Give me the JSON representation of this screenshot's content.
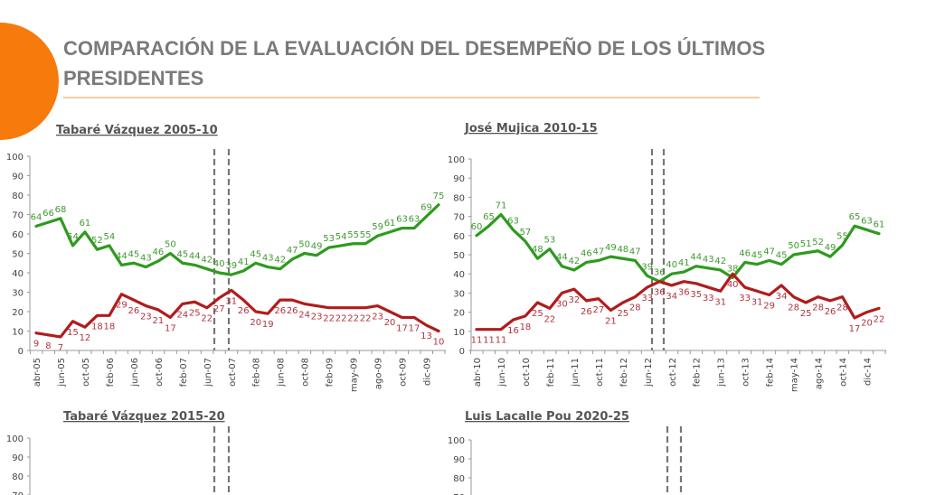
{
  "slide": {
    "title_line1": "COMPARACIÓN DE LA EVALUACIÓN DEL DESEMPEÑO DE LOS ÚLTIMOS",
    "title_line2": "PRESIDENTES",
    "accent_color": "#f77a0c"
  },
  "chart_data": [
    {
      "type": "line",
      "title": "Tabaré Vázquez 2005-10",
      "ylim": [
        0,
        100
      ],
      "yticks": [
        0,
        10,
        20,
        30,
        40,
        50,
        60,
        70,
        80,
        90,
        100
      ],
      "xtick_labels": [
        "abr-05",
        "jun-05",
        "oct-05",
        "feb-06",
        "jun-06",
        "oct-06",
        "feb-07",
        "jun-07",
        "oct-07",
        "feb-08",
        "jun-08",
        "oct-08",
        "feb-09",
        "may-09",
        "ago-09",
        "oct-09",
        "dic-09"
      ],
      "series": [
        {
          "color": "#2e9a1e",
          "values": [
            64,
            66,
            68,
            54,
            61,
            52,
            54,
            44,
            45,
            43,
            46,
            50,
            45,
            44,
            42,
            40,
            39,
            41,
            45,
            43,
            42,
            47,
            50,
            49,
            53,
            54,
            55,
            55,
            59,
            61,
            63,
            63,
            69,
            75
          ]
        },
        {
          "color": "#b01c1c",
          "values": [
            9,
            8,
            7,
            15,
            12,
            18,
            18,
            29,
            26,
            23,
            21,
            17,
            24,
            25,
            22,
            27,
            31,
            26,
            20,
            19,
            26,
            26,
            24,
            23,
            22,
            22,
            22,
            22,
            23,
            20,
            17,
            17,
            13,
            10
          ]
        }
      ],
      "dashed_markers": true
    },
    {
      "type": "line",
      "title": "José Mujica 2010-15",
      "ylim": [
        0,
        100
      ],
      "yticks": [
        0,
        10,
        20,
        30,
        40,
        50,
        60,
        70,
        80,
        90,
        100
      ],
      "xtick_labels": [
        "abr-10",
        "jun-10",
        "oct-10",
        "feb-11",
        "jun-11",
        "oct-11",
        "feb-12",
        "jun-12",
        "oct-12",
        "feb-12",
        "jun-13",
        "oct-13",
        "feb-14",
        "may-14",
        "ago-14",
        "oct-14",
        "dic-14"
      ],
      "series": [
        {
          "color": "#2e9a1e",
          "values": [
            60,
            65,
            71,
            63,
            57,
            48,
            53,
            44,
            42,
            46,
            47,
            49,
            48,
            47,
            39,
            36,
            40,
            41,
            44,
            43,
            42,
            38,
            46,
            45,
            47,
            45,
            50,
            51,
            52,
            49,
            55,
            65,
            63,
            61
          ]
        },
        {
          "color": "#b01c1c",
          "values": [
            11,
            11,
            11,
            16,
            18,
            25,
            22,
            30,
            32,
            26,
            27,
            21,
            25,
            28,
            33,
            36,
            34,
            36,
            35,
            33,
            31,
            40,
            33,
            31,
            29,
            34,
            28,
            25,
            28,
            26,
            28,
            17,
            20,
            22
          ]
        }
      ],
      "dashed_markers": true
    },
    {
      "type": "line",
      "title": "Tabaré Vázquez 2015-20",
      "ylim": [
        0,
        100
      ],
      "yticks": [
        70,
        80,
        90,
        100
      ],
      "series": [],
      "dashed_markers": true
    },
    {
      "type": "line",
      "title": "Luis Lacalle Pou 2020-25",
      "ylim": [
        0,
        100
      ],
      "yticks": [
        70,
        80,
        90,
        100
      ],
      "series": [],
      "dashed_markers": true
    }
  ]
}
